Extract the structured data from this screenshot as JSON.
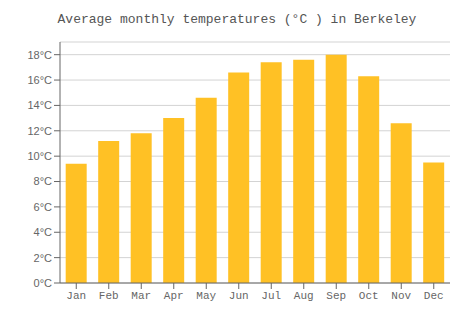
{
  "chart_data": {
    "type": "bar",
    "title": "Average monthly temperatures (°C ) in Berkeley",
    "categories": [
      "Jan",
      "Feb",
      "Mar",
      "Apr",
      "May",
      "Jun",
      "Jul",
      "Aug",
      "Sep",
      "Oct",
      "Nov",
      "Dec"
    ],
    "values": [
      9.4,
      11.2,
      11.8,
      13.0,
      14.6,
      16.6,
      17.4,
      17.6,
      18.0,
      16.3,
      12.6,
      9.5
    ],
    "color": "#FFC125",
    "ylim": [
      0,
      19
    ],
    "yticks": [
      {
        "value": 0,
        "label": "0°C"
      },
      {
        "value": 2,
        "label": "2°C"
      },
      {
        "value": 4,
        "label": "4°C"
      },
      {
        "value": 6,
        "label": "6°C"
      },
      {
        "value": 8,
        "label": "8°C"
      },
      {
        "value": 10,
        "label": "10°C"
      },
      {
        "value": 12,
        "label": "12°C"
      },
      {
        "value": 14,
        "label": "14°C"
      },
      {
        "value": 16,
        "label": "16°C"
      },
      {
        "value": 18,
        "label": "18°C"
      }
    ],
    "grid": true
  }
}
